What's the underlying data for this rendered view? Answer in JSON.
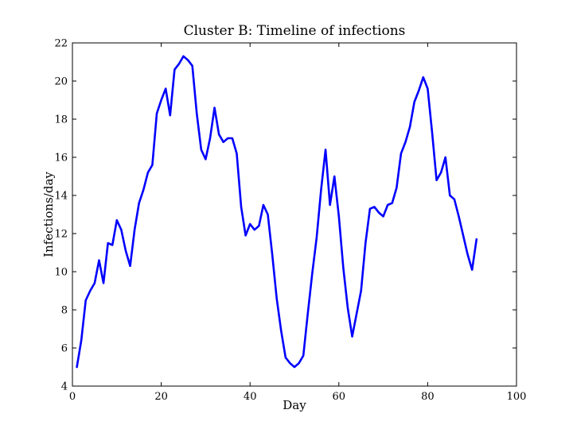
{
  "chart_data": {
    "type": "line",
    "title": "Cluster B: Timeline of infections",
    "xlabel": "Day",
    "ylabel": "Infections/day",
    "xlim": [
      0,
      100
    ],
    "ylim": [
      4,
      22
    ],
    "xticks": [
      "0",
      "20",
      "40",
      "60",
      "80",
      "100"
    ],
    "yticks": [
      "4",
      "6",
      "8",
      "10",
      "12",
      "14",
      "16",
      "18",
      "20",
      "22"
    ],
    "grid": false,
    "line_color": "#0000ff",
    "series": [
      {
        "x": [
          1,
          2,
          3,
          4,
          5,
          6,
          7,
          8,
          9,
          10,
          11,
          12,
          13,
          14,
          15,
          16,
          17,
          18,
          19,
          20,
          21,
          22,
          23,
          24,
          25,
          26,
          27,
          28,
          29,
          30,
          31,
          32,
          33,
          34,
          35,
          36,
          37,
          38,
          39,
          40,
          41,
          42,
          43,
          44,
          45,
          46,
          47,
          48,
          49,
          50,
          51,
          52,
          53,
          54,
          55,
          56,
          57,
          58,
          59,
          60,
          61,
          62,
          63,
          64,
          65,
          66,
          67,
          68,
          69,
          70,
          71,
          72,
          73,
          74,
          75,
          76,
          77,
          78,
          79,
          80,
          81,
          82,
          83,
          84,
          85,
          86,
          87,
          88,
          89,
          90,
          91
        ],
        "y": [
          5.0,
          6.4,
          8.5,
          9.0,
          9.4,
          10.6,
          9.4,
          11.5,
          11.4,
          12.7,
          12.2,
          11.1,
          10.3,
          12.2,
          13.6,
          14.3,
          15.2,
          15.6,
          18.3,
          19.0,
          19.6,
          18.2,
          20.6,
          20.9,
          21.3,
          21.1,
          20.8,
          18.3,
          16.4,
          15.9,
          17.0,
          18.6,
          17.2,
          16.8,
          17.0,
          17.0,
          16.2,
          13.4,
          11.9,
          12.5,
          12.2,
          12.4,
          13.5,
          13.0,
          10.9,
          8.6,
          6.9,
          5.5,
          5.2,
          5.0,
          5.2,
          5.6,
          7.8,
          9.9,
          11.8,
          14.3,
          16.4,
          13.5,
          15.0,
          12.9,
          10.2,
          8.1,
          6.6,
          7.8,
          9.0,
          11.5,
          13.3,
          13.4,
          13.1,
          12.9,
          13.5,
          13.6,
          14.4,
          16.2,
          16.8,
          17.6,
          18.9,
          19.5,
          20.2,
          19.6,
          17.3,
          14.8,
          15.2,
          16.0,
          14.0,
          13.8,
          12.9,
          11.9,
          10.9,
          10.1,
          11.7
        ]
      }
    ]
  }
}
